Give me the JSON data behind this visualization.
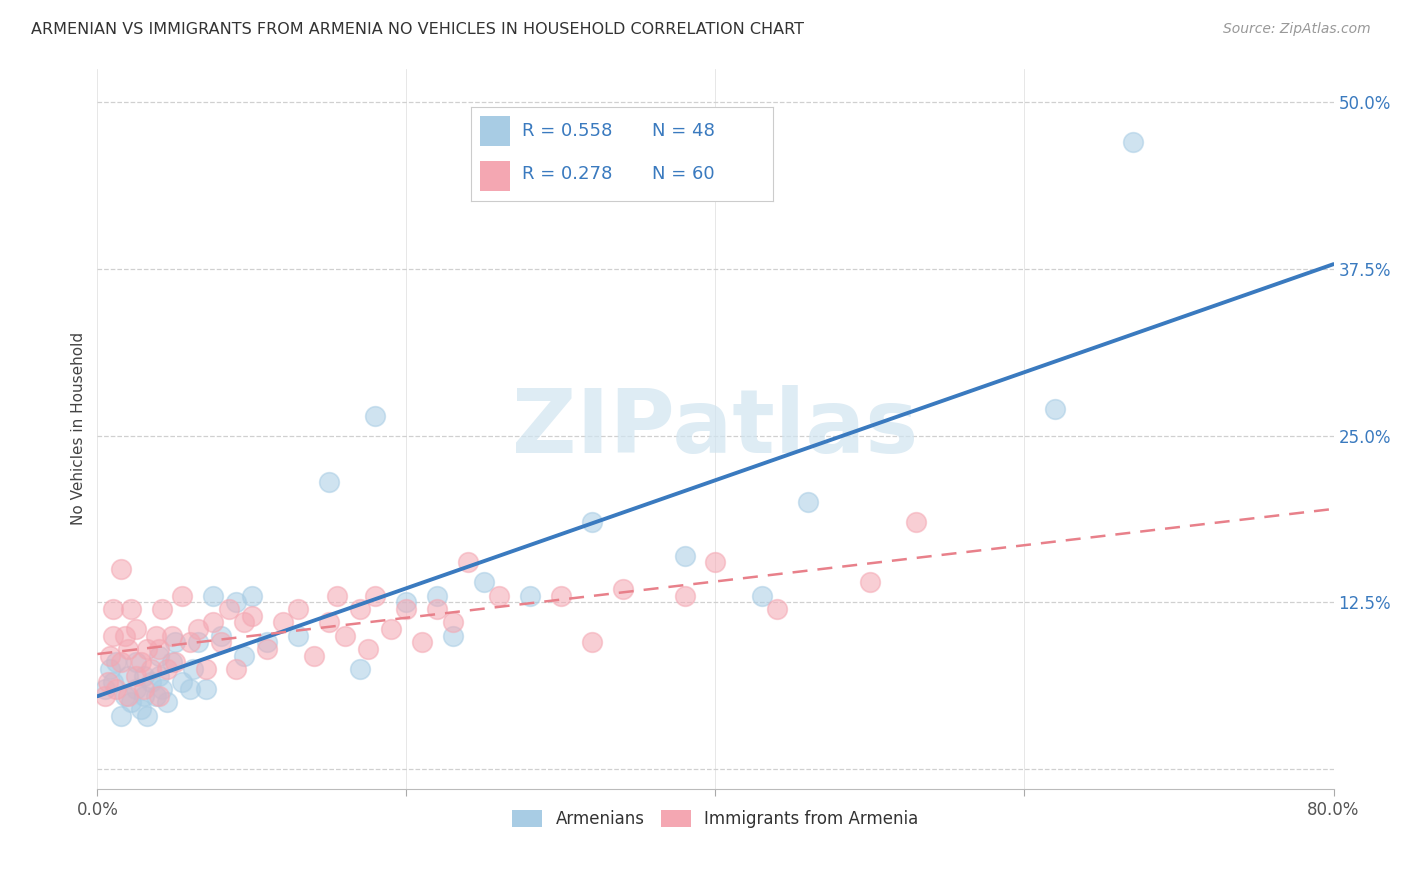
{
  "title": "ARMENIAN VS IMMIGRANTS FROM ARMENIA NO VEHICLES IN HOUSEHOLD CORRELATION CHART",
  "source": "Source: ZipAtlas.com",
  "ylabel": "No Vehicles in Household",
  "x_min": 0.0,
  "x_max": 0.8,
  "y_min": -0.015,
  "y_max": 0.525,
  "x_ticks": [
    0.0,
    0.2,
    0.4,
    0.6,
    0.8
  ],
  "y_ticks": [
    0.0,
    0.125,
    0.25,
    0.375,
    0.5
  ],
  "y_tick_labels": [
    "",
    "12.5%",
    "25.0%",
    "37.5%",
    "50.0%"
  ],
  "legend_r1": "R = 0.558",
  "legend_n1": "N = 48",
  "legend_r2": "R = 0.278",
  "legend_n2": "N = 60",
  "blue_scatter_color": "#a8cce4",
  "pink_scatter_color": "#f4a7b2",
  "blue_line_color": "#3a7abf",
  "pink_line_color": "#e8808a",
  "grid_color": "#d0d0d0",
  "watermark_color": "#d0e4f0",
  "armenians_x": [
    0.005,
    0.008,
    0.01,
    0.012,
    0.015,
    0.018,
    0.02,
    0.022,
    0.025,
    0.025,
    0.028,
    0.03,
    0.03,
    0.032,
    0.035,
    0.038,
    0.04,
    0.04,
    0.042,
    0.045,
    0.048,
    0.05,
    0.055,
    0.06,
    0.062,
    0.065,
    0.07,
    0.075,
    0.08,
    0.09,
    0.095,
    0.1,
    0.11,
    0.13,
    0.15,
    0.17,
    0.18,
    0.2,
    0.22,
    0.23,
    0.25,
    0.28,
    0.32,
    0.38,
    0.43,
    0.46,
    0.62,
    0.67
  ],
  "armenians_y": [
    0.06,
    0.075,
    0.065,
    0.08,
    0.04,
    0.055,
    0.07,
    0.05,
    0.06,
    0.08,
    0.045,
    0.055,
    0.07,
    0.04,
    0.065,
    0.055,
    0.07,
    0.085,
    0.06,
    0.05,
    0.08,
    0.095,
    0.065,
    0.06,
    0.075,
    0.095,
    0.06,
    0.13,
    0.1,
    0.125,
    0.085,
    0.13,
    0.095,
    0.1,
    0.215,
    0.075,
    0.265,
    0.125,
    0.13,
    0.1,
    0.14,
    0.13,
    0.185,
    0.16,
    0.13,
    0.2,
    0.27,
    0.47
  ],
  "immigrants_x": [
    0.005,
    0.007,
    0.008,
    0.01,
    0.01,
    0.012,
    0.015,
    0.015,
    0.018,
    0.02,
    0.02,
    0.022,
    0.025,
    0.025,
    0.028,
    0.03,
    0.032,
    0.035,
    0.038,
    0.04,
    0.04,
    0.042,
    0.045,
    0.048,
    0.05,
    0.055,
    0.06,
    0.065,
    0.07,
    0.075,
    0.08,
    0.085,
    0.09,
    0.095,
    0.1,
    0.11,
    0.12,
    0.13,
    0.14,
    0.15,
    0.155,
    0.16,
    0.17,
    0.175,
    0.18,
    0.19,
    0.2,
    0.21,
    0.22,
    0.23,
    0.24,
    0.26,
    0.3,
    0.32,
    0.34,
    0.38,
    0.4,
    0.44,
    0.5,
    0.53
  ],
  "immigrants_y": [
    0.055,
    0.065,
    0.085,
    0.1,
    0.12,
    0.06,
    0.08,
    0.15,
    0.1,
    0.055,
    0.09,
    0.12,
    0.07,
    0.105,
    0.08,
    0.06,
    0.09,
    0.075,
    0.1,
    0.055,
    0.09,
    0.12,
    0.075,
    0.1,
    0.08,
    0.13,
    0.095,
    0.105,
    0.075,
    0.11,
    0.095,
    0.12,
    0.075,
    0.11,
    0.115,
    0.09,
    0.11,
    0.12,
    0.085,
    0.11,
    0.13,
    0.1,
    0.12,
    0.09,
    0.13,
    0.105,
    0.12,
    0.095,
    0.12,
    0.11,
    0.155,
    0.13,
    0.13,
    0.095,
    0.135,
    0.13,
    0.155,
    0.12,
    0.14,
    0.185
  ]
}
